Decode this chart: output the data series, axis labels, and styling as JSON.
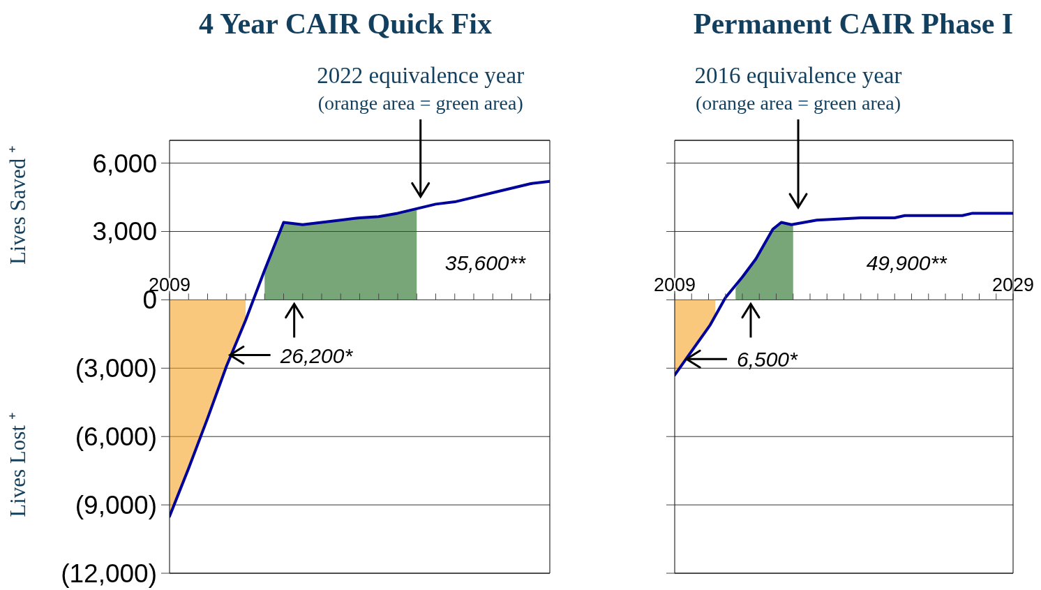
{
  "chart_data": [
    {
      "type": "line",
      "title": "4 Year CAIR Quick Fix",
      "ylabel": "Lives Saved ⁺",
      "annotations": [
        "2022 equivalence year",
        "(orange area = green area)",
        "35,600**",
        "26,200*",
        "Lives Lost ⁺"
      ],
      "categories": [
        "2009",
        null,
        null,
        null,
        null,
        null,
        null,
        null,
        null,
        null,
        null,
        null,
        null,
        null,
        null,
        null,
        null,
        null,
        null,
        null,
        null
      ],
      "ylim": [
        -12000,
        7000
      ],
      "yticks": [
        {
          "value": 6000,
          "label": "6,000"
        },
        {
          "value": 3000,
          "label": "3,000"
        },
        {
          "value": 0,
          "label": "0"
        },
        {
          "value": -3000,
          "label": "(3,000)"
        },
        {
          "value": -6000,
          "label": "(6,000)"
        },
        {
          "value": -9000,
          "label": "(9,000)"
        },
        {
          "value": -12000,
          "label": "(12,000)"
        }
      ],
      "grid": "y",
      "series": [
        {
          "type": "area",
          "color": "#f7a325",
          "values": [
            -9500,
            -7400,
            -5200,
            -2900,
            -900,
            null,
            null,
            null,
            null,
            null,
            null,
            null,
            null,
            null,
            null,
            null,
            null,
            null,
            null,
            null,
            null
          ]
        },
        {
          "type": "area",
          "color": "#1e6b1e",
          "values": [
            null,
            null,
            null,
            null,
            null,
            1300,
            3400,
            3300,
            3400,
            3500,
            3600,
            3650,
            3800,
            4000,
            null,
            null,
            null,
            null,
            null,
            null,
            null
          ]
        },
        {
          "type": "line",
          "color": "#00009a",
          "values": [
            -9500,
            -7400,
            -5200,
            -2900,
            -900,
            1300,
            3400,
            3300,
            3400,
            3500,
            3600,
            3650,
            3800,
            4000,
            4200,
            4300,
            4500,
            4700,
            4900,
            5100,
            5200
          ]
        }
      ]
    },
    {
      "type": "line",
      "title": "Permanent CAIR Phase I",
      "annotations": [
        "2016 equivalence year",
        "(orange area = green area)",
        "49,900**",
        {
          "text": "6,500*",
          "x": 2009.7,
          "y": -2600
        }
      ],
      "xlim": [
        2009,
        2029
      ],
      "xticks": [
        {
          "value": 2009,
          "label": "2009"
        },
        {
          "value": 2010,
          "label": null
        },
        {
          "value": 2011,
          "label": null
        },
        {
          "value": 2012,
          "label": null
        },
        {
          "value": 2013,
          "label": null
        },
        {
          "value": 2014,
          "label": null
        },
        {
          "value": 2015,
          "label": null
        },
        {
          "value": 2016,
          "label": null
        },
        {
          "value": 2017,
          "label": null
        },
        {
          "value": 2018,
          "label": null
        },
        {
          "value": 2019,
          "label": null
        },
        {
          "value": 2020,
          "label": null
        },
        {
          "value": 2021,
          "label": null
        },
        {
          "value": 2022,
          "label": null
        },
        {
          "value": 2023,
          "label": null
        },
        {
          "value": 2024,
          "label": null
        },
        {
          "value": 2025,
          "label": null
        },
        {
          "value": 2026,
          "label": null
        },
        {
          "value": 2027,
          "label": null
        },
        {
          "value": 2028,
          "label": null
        },
        {
          "value": 2029,
          "label": "2029"
        }
      ],
      "ylim": [
        -12000,
        7000
      ],
      "yticks": [
        {
          "value": 6000,
          "label": null
        },
        {
          "value": 3000,
          "label": null
        },
        {
          "value": 0,
          "label": null
        },
        {
          "value": -3000,
          "label": null
        },
        {
          "value": -6000,
          "label": null
        },
        {
          "value": -9000,
          "label": null
        },
        {
          "value": -12000,
          "label": null
        }
      ],
      "grid": "y",
      "tick_labels": "x",
      "series": [
        {
          "type": "area",
          "color": "#f7a325",
          "x": [
            2009,
            2011.1,
            2011.4
          ],
          "values": [
            -3300,
            -1100,
            -700
          ]
        },
        {
          "type": "area",
          "color": "#1e6b1e",
          "x": [
            2012.6,
            2013,
            2013.8,
            2014.8,
            2015.3,
            2016
          ],
          "values": [
            500,
            1000,
            1800,
            3100,
            3400,
            3300
          ]
        },
        {
          "type": "line",
          "color": "#00009a",
          "x": [
            2009,
            2011.1,
            2012,
            2013,
            2013.8,
            2014.8,
            2015.3,
            2015.9,
            2017.4,
            2020,
            2022,
            2022.6,
            2026,
            2026.6,
            2029
          ],
          "values": [
            -3300,
            -1100,
            100,
            1000,
            1800,
            3100,
            3400,
            3300,
            3500,
            3600,
            3600,
            3700,
            3700,
            3800,
            3800
          ]
        }
      ]
    }
  ]
}
